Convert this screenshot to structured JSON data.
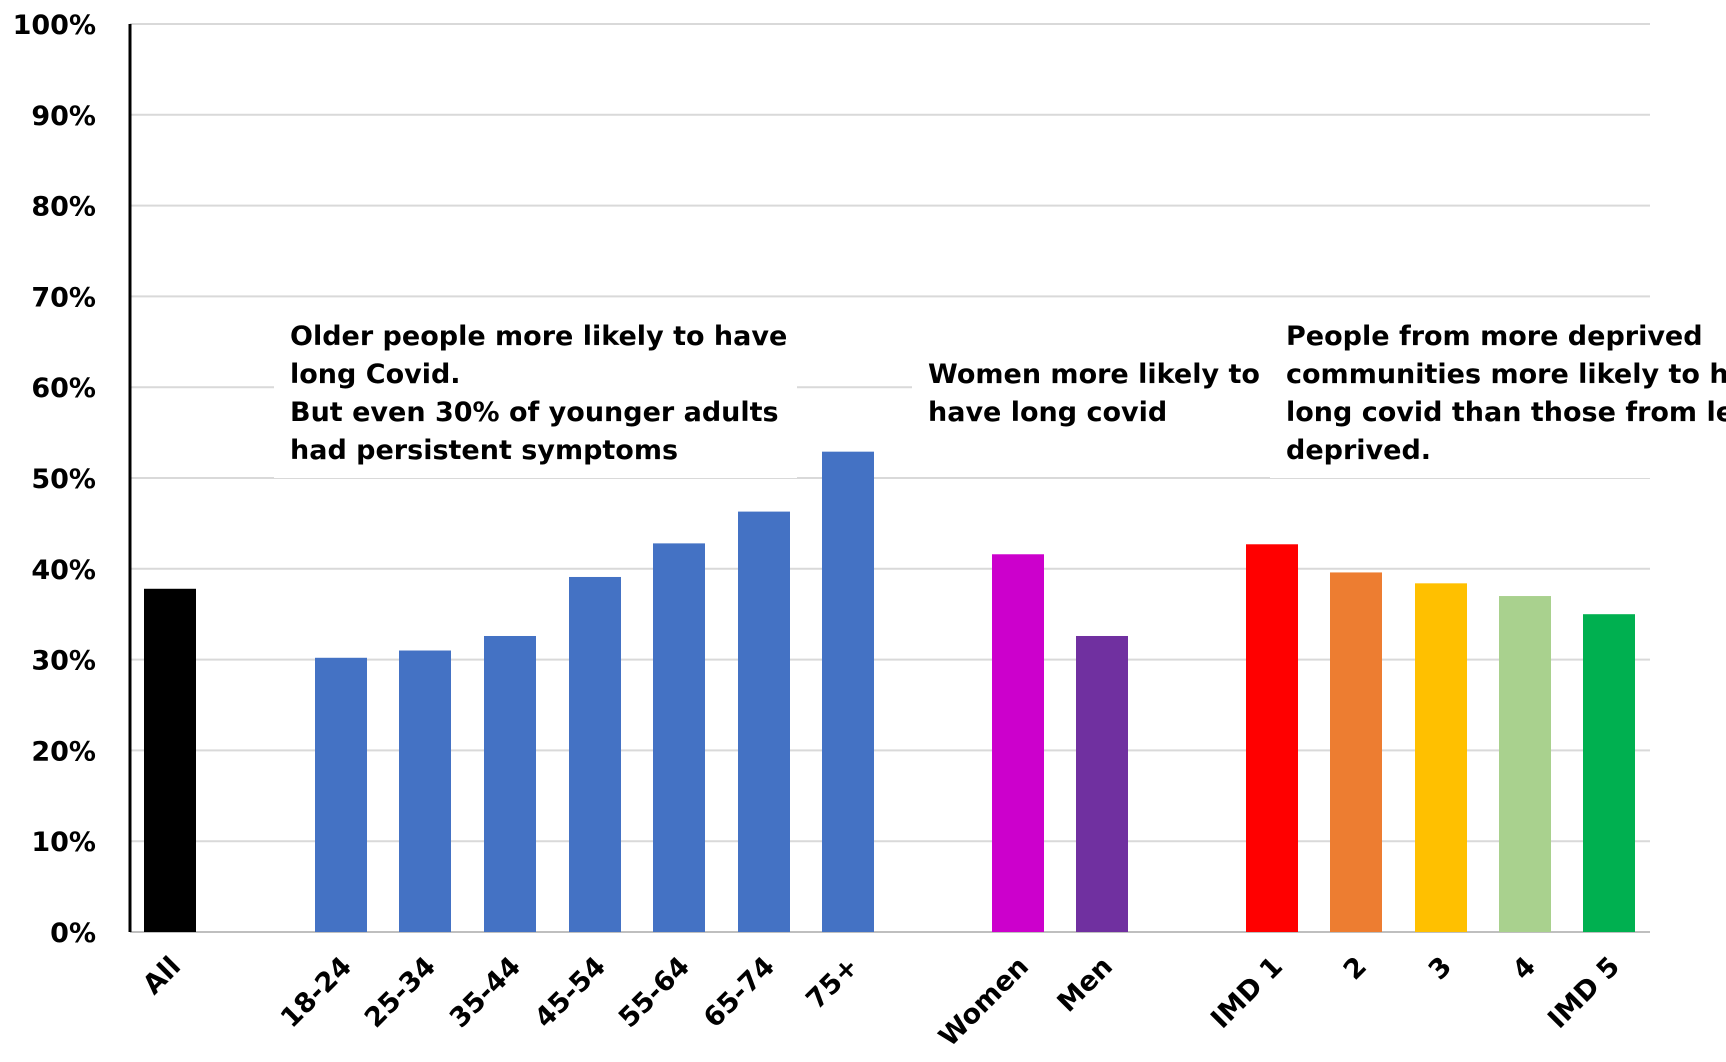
{
  "chart_data": {
    "type": "bar",
    "title": "",
    "xlabel": "",
    "ylabel": "",
    "ylim": [
      0,
      100
    ],
    "y_ticks": [
      "0%",
      "10%",
      "20%",
      "30%",
      "40%",
      "50%",
      "60%",
      "70%",
      "80%",
      "90%",
      "100%"
    ],
    "grid": true,
    "categories": [
      "All",
      "18-24",
      "25-34",
      "35-44",
      "45-54",
      "55-64",
      "65-74",
      "75+",
      "Women",
      "Men",
      "IMD 1",
      "2",
      "3",
      "4",
      "IMD 5"
    ],
    "values": [
      37.8,
      30.2,
      31.0,
      32.6,
      39.1,
      42.8,
      46.3,
      52.9,
      41.6,
      32.6,
      42.7,
      39.6,
      38.4,
      37.0,
      35.0
    ],
    "colors": [
      "#000000",
      "#4472c4",
      "#4472c4",
      "#4472c4",
      "#4472c4",
      "#4472c4",
      "#4472c4",
      "#4472c4",
      "#cc00cc",
      "#7030a0",
      "#ff0000",
      "#ed7d31",
      "#ffc000",
      "#a9d18e",
      "#00b050"
    ],
    "annotations": [
      {
        "lines": [
          "Older people more likely to have",
          "long Covid.",
          "But even 30% of younger adults",
          "had persistent symptoms"
        ]
      },
      {
        "lines": [
          "Women more likely to",
          "have long covid"
        ]
      },
      {
        "lines": [
          "People from more deprived",
          "communities more likely to have",
          "long covid than those from less",
          "deprived."
        ]
      }
    ]
  }
}
